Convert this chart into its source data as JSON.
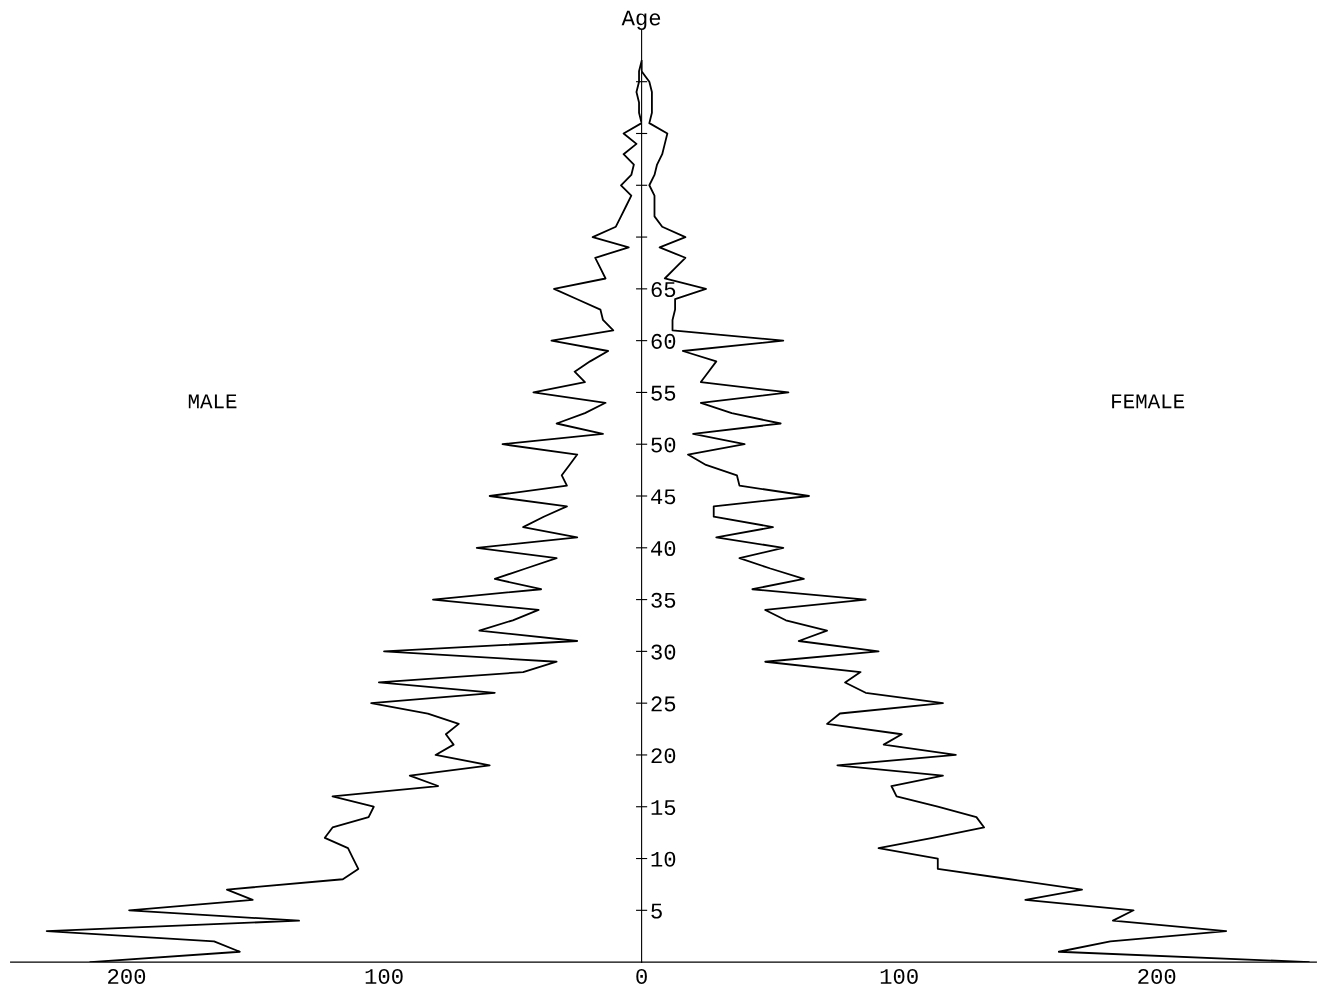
{
  "chart_data": [
    {
      "type": "line",
      "orientation": "horizontal",
      "x": [
        0,
        1,
        2,
        3,
        4,
        5,
        6,
        7,
        8,
        9,
        10,
        11,
        12,
        13,
        14,
        15,
        16,
        17,
        18,
        19,
        20,
        21,
        22,
        23,
        24,
        25,
        26,
        27,
        28,
        29,
        30,
        31,
        32,
        33,
        34,
        35,
        36,
        37,
        38,
        39,
        40,
        41,
        42,
        43,
        44,
        45,
        46,
        47,
        48,
        49,
        50,
        51,
        52,
        53,
        54,
        55,
        56,
        57,
        58,
        59,
        60,
        61,
        62,
        63,
        64,
        65,
        66,
        67,
        68,
        69,
        70,
        71,
        72,
        73,
        74,
        75,
        76,
        77,
        78,
        79,
        80,
        81,
        82,
        83,
        84,
        85,
        86,
        87
      ],
      "series": [
        {
          "name": "MALE",
          "color": "#000000",
          "values": [
            214,
            156,
            166,
            231,
            133,
            199,
            151,
            161,
            116,
            110,
            112,
            114,
            123,
            120,
            106,
            104,
            120,
            79,
            90,
            59,
            80,
            73,
            76,
            71,
            83,
            105,
            57,
            102,
            46,
            33,
            100,
            25,
            63,
            50,
            40,
            81,
            39,
            57,
            45,
            33,
            64,
            25,
            46,
            38,
            29,
            59,
            29,
            31,
            28,
            25,
            54,
            15,
            33,
            22,
            14,
            42,
            22,
            26,
            20,
            13,
            35,
            11,
            15,
            16,
            25,
            34,
            14,
            16,
            18,
            5,
            19,
            10,
            8,
            6,
            4,
            8,
            4,
            3,
            7,
            2,
            7,
            0,
            1,
            1,
            2,
            1,
            1,
            0
          ]
        }
      ],
      "xlim": [
        245,
        0
      ],
      "ylim": [
        0,
        90
      ],
      "xticks": [
        200,
        100
      ],
      "tick_labels": "x",
      "grid": false,
      "legend": false,
      "marker": "none",
      "line_style": "solid"
    },
    {
      "type": "line",
      "orientation": "horizontal",
      "ylabel": "Age",
      "x": [
        0,
        1,
        2,
        3,
        4,
        5,
        6,
        7,
        8,
        9,
        10,
        11,
        12,
        13,
        14,
        15,
        16,
        17,
        18,
        19,
        20,
        21,
        22,
        23,
        24,
        25,
        26,
        27,
        28,
        29,
        30,
        31,
        32,
        33,
        34,
        35,
        36,
        37,
        38,
        39,
        40,
        41,
        42,
        43,
        44,
        45,
        46,
        47,
        48,
        49,
        50,
        51,
        52,
        53,
        54,
        55,
        56,
        57,
        58,
        59,
        60,
        61,
        62,
        63,
        64,
        65,
        66,
        67,
        68,
        69,
        70,
        71,
        72,
        73,
        74,
        75,
        76,
        77,
        78,
        79,
        80,
        81,
        82,
        83,
        84,
        85,
        86,
        87
      ],
      "series": [
        {
          "name": "FEMALE",
          "color": "#000000",
          "values": [
            259,
            162,
            182,
            227,
            183,
            191,
            149,
            171,
            143,
            115,
            115,
            92,
            113,
            133,
            130,
            115,
            99,
            97,
            117,
            76,
            122,
            94,
            101,
            72,
            77,
            117,
            87,
            79,
            85,
            48,
            92,
            61,
            72,
            56,
            48,
            87,
            43,
            63,
            50,
            38,
            55,
            29,
            51,
            28,
            28,
            65,
            38,
            37,
            25,
            18,
            40,
            20,
            54,
            35,
            23,
            57,
            23,
            26,
            29,
            16,
            55,
            12,
            12,
            13,
            13,
            25,
            9,
            13,
            17,
            7,
            17,
            8,
            5,
            5,
            5,
            3,
            5,
            6,
            8,
            9,
            10,
            3,
            4,
            4,
            4,
            3,
            0,
            0
          ]
        }
      ],
      "xlim": [
        0,
        262
      ],
      "ylim": [
        0,
        90
      ],
      "xticks": [
        0,
        100,
        200
      ],
      "yticks": [
        5,
        10,
        15,
        20,
        25,
        30,
        35,
        40,
        45,
        50,
        55,
        60,
        65,
        {
          "value": 70,
          "label": null
        },
        {
          "value": 75,
          "label": null
        },
        {
          "value": 80,
          "label": null
        },
        {
          "value": 85,
          "label": null
        }
      ],
      "grid": false,
      "legend": false,
      "marker": "none",
      "line_style": "solid"
    }
  ]
}
